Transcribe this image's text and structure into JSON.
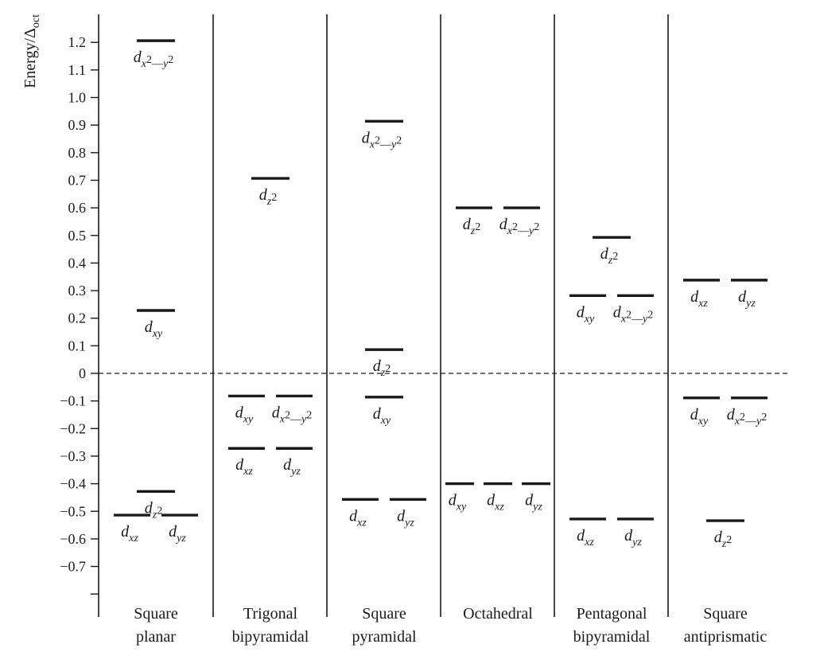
{
  "axis": {
    "title_main": "Energy/Δ",
    "title_sub": "oct",
    "ticks": [
      {
        "value": 1.2,
        "label": "1.2"
      },
      {
        "value": 1.1,
        "label": "1.1"
      },
      {
        "value": 1.0,
        "label": "1.0"
      },
      {
        "value": 0.9,
        "label": "0.9"
      },
      {
        "value": 0.8,
        "label": "0.8"
      },
      {
        "value": 0.7,
        "label": "0.7"
      },
      {
        "value": 0.6,
        "label": "0.6"
      },
      {
        "value": 0.5,
        "label": "0.5"
      },
      {
        "value": 0.4,
        "label": "0.4"
      },
      {
        "value": 0.3,
        "label": "0.3"
      },
      {
        "value": 0.2,
        "label": "0.2"
      },
      {
        "value": 0.1,
        "label": "0.1"
      },
      {
        "value": 0.0,
        "label": "0"
      },
      {
        "value": -0.1,
        "label": "-0.1"
      },
      {
        "value": -0.2,
        "label": "-0.2"
      },
      {
        "value": -0.3,
        "label": "-0.3"
      },
      {
        "value": -0.4,
        "label": "-0.4"
      },
      {
        "value": -0.5,
        "label": "-0.5"
      },
      {
        "value": -0.6,
        "label": "-0.6"
      },
      {
        "value": -0.7,
        "label": "-0.7"
      },
      {
        "value": -0.8,
        "label": ""
      }
    ]
  },
  "columns": [
    {
      "label_lines": [
        "Square",
        "planar"
      ],
      "levels": [
        {
          "energy": 1.206,
          "orbitals": [
            "x2-y2"
          ]
        },
        {
          "energy": 0.228,
          "orbitals": [
            "xy"
          ]
        },
        {
          "energy": -0.428,
          "orbitals": [
            "z2"
          ]
        },
        {
          "energy": -0.514,
          "orbitals": [
            "xz",
            "yz"
          ]
        }
      ]
    },
    {
      "label_lines": [
        "Trigonal",
        "bipyramidal"
      ],
      "levels": [
        {
          "energy": 0.707,
          "orbitals": [
            "z2"
          ]
        },
        {
          "energy": -0.082,
          "orbitals": [
            "xy",
            "x2-y2"
          ]
        },
        {
          "energy": -0.272,
          "orbitals": [
            "xz",
            "yz"
          ]
        }
      ]
    },
    {
      "label_lines": [
        "Square",
        "pyramidal"
      ],
      "levels": [
        {
          "energy": 0.914,
          "orbitals": [
            "x2-y2"
          ]
        },
        {
          "energy": 0.086,
          "orbitals": [
            "z2"
          ]
        },
        {
          "energy": -0.086,
          "orbitals": [
            "xy"
          ]
        },
        {
          "energy": -0.457,
          "orbitals": [
            "xz",
            "yz"
          ]
        }
      ]
    },
    {
      "label_lines": [
        "Octahedral"
      ],
      "levels": [
        {
          "energy": 0.6,
          "orbitals": [
            "z2",
            "x2-y2"
          ]
        },
        {
          "energy": -0.4,
          "orbitals": [
            "xy",
            "xz",
            "yz"
          ]
        }
      ]
    },
    {
      "label_lines": [
        "Pentagonal",
        "bipyramidal"
      ],
      "levels": [
        {
          "energy": 0.493,
          "orbitals": [
            "z2"
          ]
        },
        {
          "energy": 0.282,
          "orbitals": [
            "xy",
            "x2-y2"
          ]
        },
        {
          "energy": -0.528,
          "orbitals": [
            "xz",
            "yz"
          ]
        }
      ]
    },
    {
      "label_lines": [
        "Square",
        "antiprismatic"
      ],
      "levels": [
        {
          "energy": 0.338,
          "orbitals": [
            "xz",
            "yz"
          ]
        },
        {
          "energy": -0.089,
          "orbitals": [
            "xy",
            "x2-y2"
          ]
        },
        {
          "energy": -0.534,
          "orbitals": [
            "z2"
          ]
        }
      ]
    }
  ]
}
